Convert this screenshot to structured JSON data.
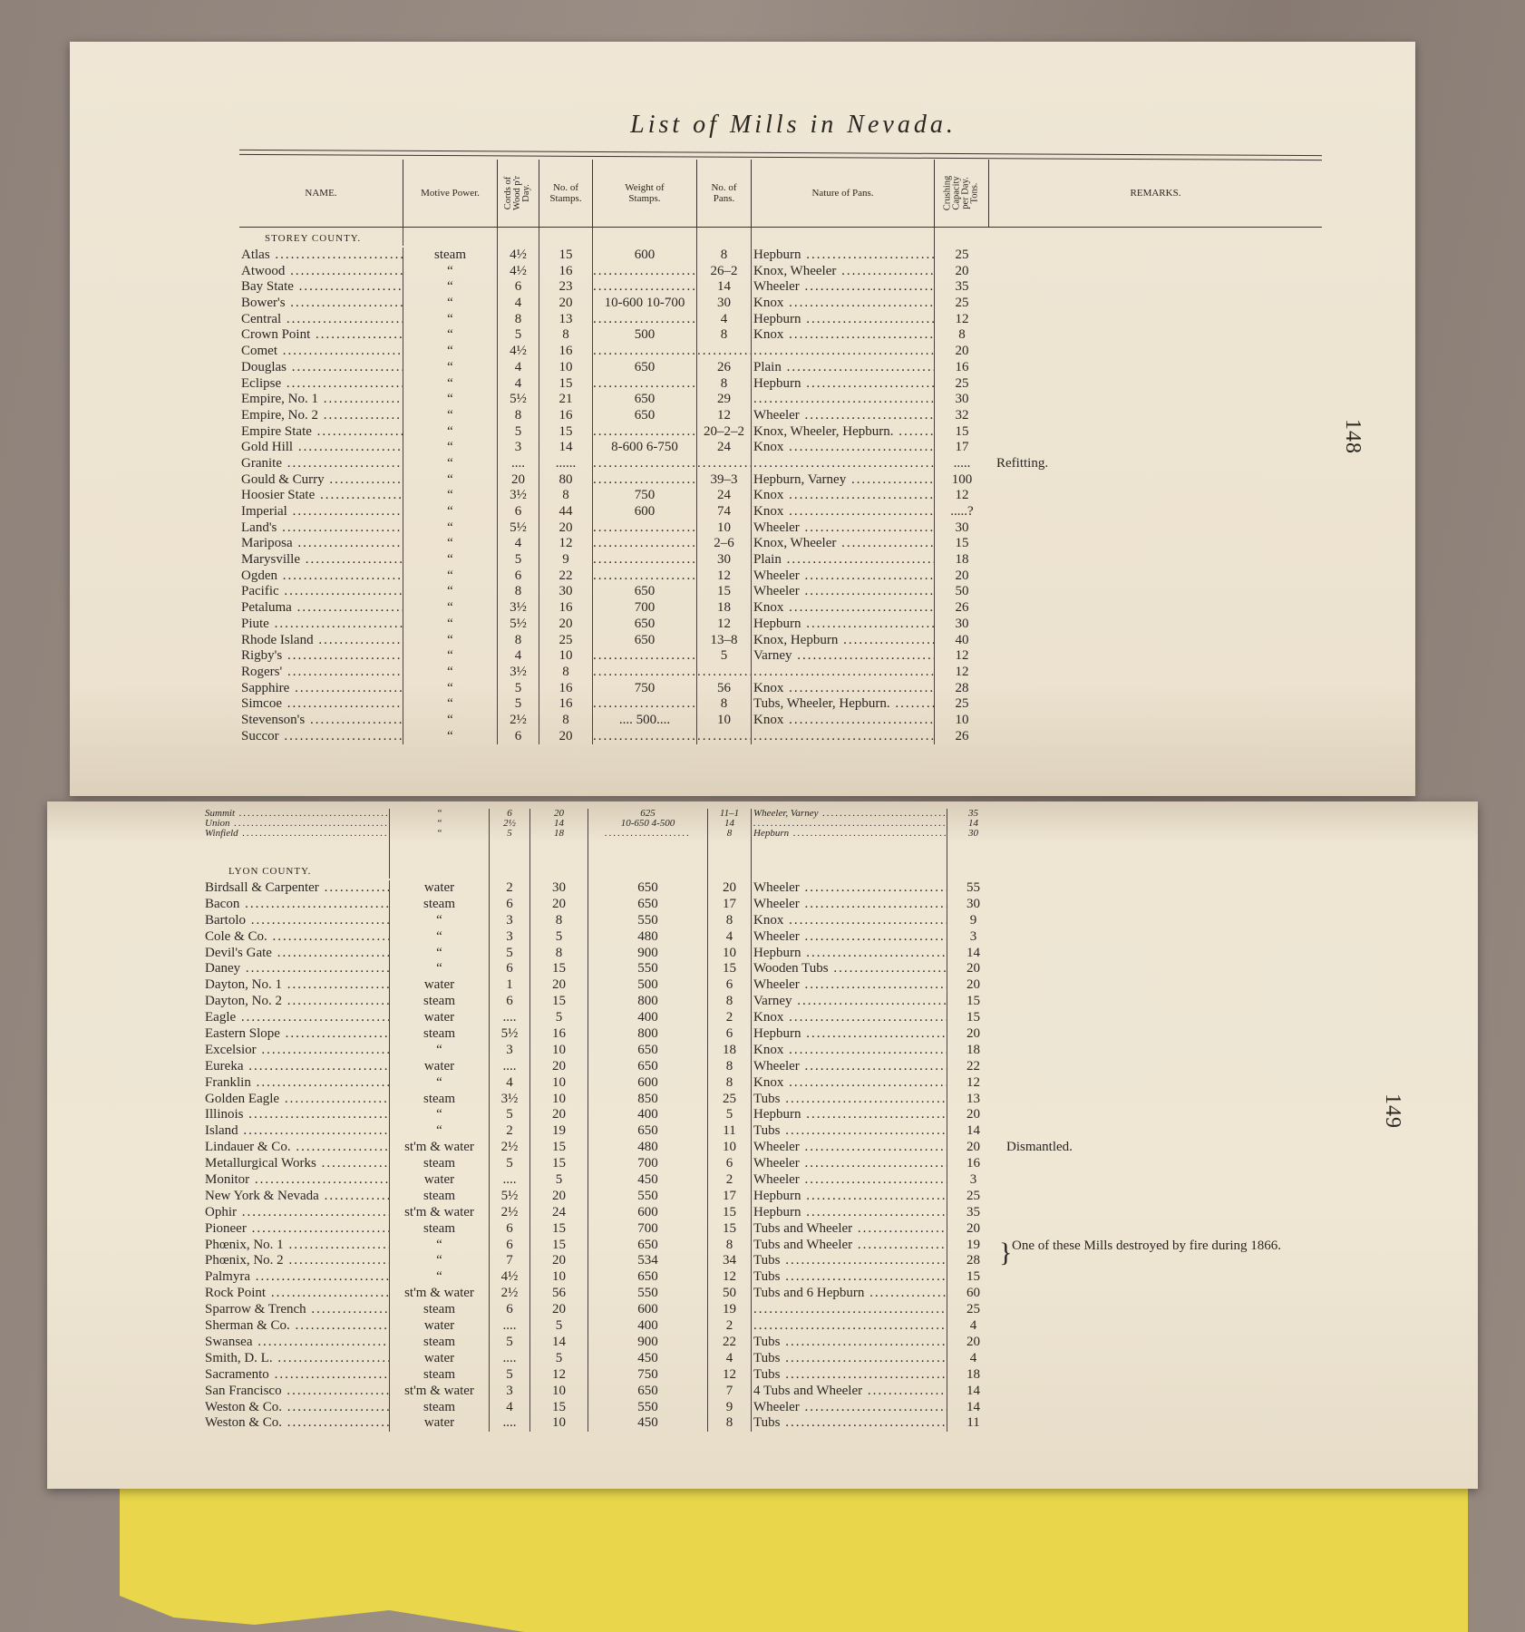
{
  "title": "List of Mills in Nevada.",
  "page_numbers": [
    "148",
    "149"
  ],
  "columns": [
    "NAME.",
    "Motive Power.",
    "Cords of\nWood p'r\nDay.",
    "No. of\nStamps.",
    "Weight of\nStamps.",
    "No. of\nPans.",
    "Nature of Pans.",
    "Crushing\nCapacity\nper Day.\nTons.",
    "REMARKS."
  ],
  "storey": {
    "label": "STOREY COUNTY.",
    "rows": [
      [
        "Atlas",
        "steam",
        "4½",
        "15",
        "600",
        "8",
        "Hepburn",
        "25",
        ""
      ],
      [
        "Atwood",
        "“",
        "4½",
        "16",
        "",
        "26–2",
        "Knox, Wheeler",
        "20",
        ""
      ],
      [
        "Bay State",
        "“",
        "6",
        "23",
        "",
        "14",
        "Wheeler",
        "35",
        ""
      ],
      [
        "Bower's",
        "“",
        "4",
        "20",
        "10-600 10-700",
        "30",
        "Knox",
        "25",
        ""
      ],
      [
        "Central",
        "“",
        "8",
        "13",
        "",
        "4",
        "Hepburn",
        "12",
        ""
      ],
      [
        "Crown Point",
        "“",
        "5",
        "8",
        "500",
        "8",
        "Knox",
        "8",
        ""
      ],
      [
        "Comet",
        "“",
        "4½",
        "16",
        "",
        "",
        "",
        "20",
        ""
      ],
      [
        "Douglas",
        "“",
        "4",
        "10",
        "650",
        "26",
        "Plain",
        "16",
        ""
      ],
      [
        "Eclipse",
        "“",
        "4",
        "15",
        "",
        "8",
        "Hepburn",
        "25",
        ""
      ],
      [
        "Empire, No. 1",
        "“",
        "5½",
        "21",
        "650",
        "29",
        "",
        "30",
        ""
      ],
      [
        "Empire, No. 2",
        "“",
        "8",
        "16",
        "650",
        "12",
        "Wheeler",
        "32",
        ""
      ],
      [
        "Empire State",
        "“",
        "5",
        "15",
        "",
        "20–2–2",
        "Knox, Wheeler, Hepburn.",
        "15",
        ""
      ],
      [
        "Gold Hill",
        "“",
        "3",
        "14",
        "8-600 6-750",
        "24",
        "Knox",
        "17",
        ""
      ],
      [
        "Granite",
        "“",
        "....",
        "......",
        "",
        "",
        "",
        ".....",
        "Refitting."
      ],
      [
        "Gould & Curry",
        "“",
        "20",
        "80",
        "",
        "39–3",
        "Hepburn, Varney",
        "100",
        ""
      ],
      [
        "Hoosier State",
        "“",
        "3½",
        "8",
        "750",
        "24",
        "Knox",
        "12",
        ""
      ],
      [
        "Imperial",
        "“",
        "6",
        "44",
        "600",
        "74",
        "Knox",
        ".....?",
        ""
      ],
      [
        "Land's",
        "“",
        "5½",
        "20",
        "",
        "10",
        "Wheeler",
        "30",
        ""
      ],
      [
        "Mariposa",
        "“",
        "4",
        "12",
        "",
        "2–6",
        "Knox, Wheeler",
        "15",
        ""
      ],
      [
        "Marysville",
        "“",
        "5",
        "9",
        "",
        "30",
        "Plain",
        "18",
        ""
      ],
      [
        "Ogden",
        "“",
        "6",
        "22",
        "",
        "12",
        "Wheeler",
        "20",
        ""
      ],
      [
        "Pacific",
        "“",
        "8",
        "30",
        "650",
        "15",
        "Wheeler",
        "50",
        ""
      ],
      [
        "Petaluma",
        "“",
        "3½",
        "16",
        "700",
        "18",
        "Knox",
        "26",
        ""
      ],
      [
        "Piute",
        "“",
        "5½",
        "20",
        "650",
        "12",
        "Hepburn",
        "30",
        ""
      ],
      [
        "Rhode Island",
        "“",
        "8",
        "25",
        "650",
        "13–8",
        "Knox, Hepburn",
        "40",
        ""
      ],
      [
        "Rigby's",
        "“",
        "4",
        "10",
        "",
        "5",
        "Varney",
        "12",
        ""
      ],
      [
        "Rogers'",
        "“",
        "3½",
        "8",
        "",
        "",
        "",
        "12",
        ""
      ],
      [
        "Sapphire",
        "“",
        "5",
        "16",
        "750",
        "56",
        "Knox",
        "28",
        ""
      ],
      [
        "Simcoe",
        "“",
        "5",
        "16",
        "",
        "8",
        "Tubs, Wheeler, Hepburn.",
        "25",
        ""
      ],
      [
        "Stevenson's",
        "“",
        "2½",
        "8",
        ".... 500....",
        "10",
        "Knox",
        "10",
        ""
      ],
      [
        "Succor",
        "“",
        "6",
        "20",
        "",
        "",
        "",
        "26",
        ""
      ]
    ]
  },
  "storey_cont": {
    "rows": [
      [
        "Summit",
        "“",
        "6",
        "20",
        "625",
        "11–1",
        "Wheeler, Varney",
        "35",
        ""
      ],
      [
        "Union",
        "“",
        "2½",
        "14",
        "10-650 4-500",
        "14",
        "",
        "14",
        ""
      ],
      [
        "Winfield",
        "“",
        "5",
        "18",
        "",
        "8",
        "Hepburn",
        "30",
        ""
      ]
    ]
  },
  "lyon": {
    "label": "LYON COUNTY.",
    "rows": [
      [
        "Birdsall & Carpenter",
        "water",
        "2",
        "30",
        "650",
        "20",
        "Wheeler",
        "55",
        ""
      ],
      [
        "Bacon",
        "steam",
        "6",
        "20",
        "650",
        "17",
        "Wheeler",
        "30",
        ""
      ],
      [
        "Bartolo",
        "“",
        "3",
        "8",
        "550",
        "8",
        "Knox",
        "9",
        ""
      ],
      [
        "Cole & Co.",
        "“",
        "3",
        "5",
        "480",
        "4",
        "Wheeler",
        "3",
        ""
      ],
      [
        "Devil's Gate",
        "“",
        "5",
        "8",
        "900",
        "10",
        "Hepburn",
        "14",
        ""
      ],
      [
        "Daney",
        "“",
        "6",
        "15",
        "550",
        "15",
        "Wooden Tubs",
        "20",
        ""
      ],
      [
        "Dayton, No. 1",
        "water",
        "1",
        "20",
        "500",
        "6",
        "Wheeler",
        "20",
        ""
      ],
      [
        "Dayton, No. 2",
        "steam",
        "6",
        "15",
        "800",
        "8",
        "Varney",
        "15",
        ""
      ],
      [
        "Eagle",
        "water",
        "....",
        "5",
        "400",
        "2",
        "Knox",
        "15",
        ""
      ],
      [
        "Eastern Slope",
        "steam",
        "5½",
        "16",
        "800",
        "6",
        "Hepburn",
        "20",
        ""
      ],
      [
        "Excelsior",
        "“",
        "3",
        "10",
        "650",
        "18",
        "Knox",
        "18",
        ""
      ],
      [
        "Eureka",
        "water",
        "....",
        "20",
        "650",
        "8",
        "Wheeler",
        "22",
        ""
      ],
      [
        "Franklin",
        "“",
        "4",
        "10",
        "600",
        "8",
        "Knox",
        "12",
        ""
      ],
      [
        "Golden Eagle",
        "steam",
        "3½",
        "10",
        "850",
        "25",
        "Tubs",
        "13",
        ""
      ],
      [
        "Illinois",
        "“",
        "5",
        "20",
        "400",
        "5",
        "Hepburn",
        "20",
        ""
      ],
      [
        "Island",
        "“",
        "2",
        "19",
        "650",
        "11",
        "Tubs",
        "14",
        ""
      ],
      [
        "Lindauer & Co.",
        "st'm & water",
        "2½",
        "15",
        "480",
        "10",
        "Wheeler",
        "20",
        "Dismantled."
      ],
      [
        "Metallurgical Works",
        "steam",
        "5",
        "15",
        "700",
        "6",
        "Wheeler",
        "16",
        ""
      ],
      [
        "Monitor",
        "water",
        "....",
        "5",
        "450",
        "2",
        "Wheeler",
        "3",
        ""
      ],
      [
        "New York & Nevada",
        "steam",
        "5½",
        "20",
        "550",
        "17",
        "Hepburn",
        "25",
        ""
      ],
      [
        "Ophir",
        "st'm & water",
        "2½",
        "24",
        "600",
        "15",
        "Hepburn",
        "35",
        ""
      ],
      [
        "Pioneer",
        "steam",
        "6",
        "15",
        "700",
        "15",
        "Tubs and Wheeler",
        "20",
        ""
      ],
      [
        "Phœnix, No. 1",
        "“",
        "6",
        "15",
        "650",
        "8",
        "Tubs and Wheeler",
        "19",
        ""
      ],
      [
        "Phœnix, No. 2",
        "“",
        "7",
        "20",
        "534",
        "34",
        "Tubs",
        "28",
        ""
      ],
      [
        "Palmyra",
        "“",
        "4½",
        "10",
        "650",
        "12",
        "Tubs",
        "15",
        ""
      ],
      [
        "Rock Point",
        "st'm & water",
        "2½",
        "56",
        "550",
        "50",
        "Tubs and 6 Hepburn",
        "60",
        ""
      ],
      [
        "Sparrow & Trench",
        "steam",
        "6",
        "20",
        "600",
        "19",
        "",
        "25",
        ""
      ],
      [
        "Sherman & Co.",
        "water",
        "....",
        "5",
        "400",
        "2",
        "",
        "4",
        ""
      ],
      [
        "Swansea",
        "steam",
        "5",
        "14",
        "900",
        "22",
        "Tubs",
        "20",
        ""
      ],
      [
        "Smith, D. L.",
        "water",
        "....",
        "5",
        "450",
        "4",
        "Tubs",
        "4",
        ""
      ],
      [
        "Sacramento",
        "steam",
        "5",
        "12",
        "750",
        "12",
        "Tubs",
        "18",
        ""
      ],
      [
        "San Francisco",
        "st'm & water",
        "3",
        "10",
        "650",
        "7",
        "4 Tubs and Wheeler",
        "14",
        ""
      ],
      [
        "Weston & Co.",
        "steam",
        "4",
        "15",
        "550",
        "9",
        "Wheeler",
        "14",
        ""
      ],
      [
        "Weston & Co.",
        "water",
        "....",
        "10",
        "450",
        "8",
        "Tubs",
        "11",
        ""
      ]
    ],
    "phoenix_remark": "One of these Mills destroyed by fire during 1866."
  }
}
